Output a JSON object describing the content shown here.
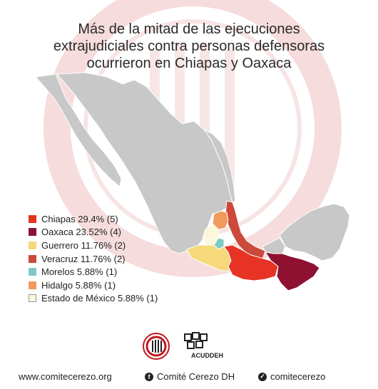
{
  "title": {
    "line1": "Más de la mitad de las ejecuciones",
    "line2": "extrajudiciales contra personas defensoras",
    "line3": "ocurrieron en Chiapas y Oaxaca"
  },
  "colors": {
    "chiapas": "#e63324",
    "oaxaca": "#8e1132",
    "guerrero": "#f5d97a",
    "veracruz": "#cc4a3c",
    "morelos": "#7fcbc7",
    "hidalgo": "#f09a5e",
    "estado_mexico": "#fdf8dc",
    "land": "#c8c8c8",
    "watermark": "#f3d6d6"
  },
  "legend": [
    {
      "label": "Chiapas 29.4% (5)",
      "color": "#e63324"
    },
    {
      "label": "Oaxaca 23.52% (4)",
      "color": "#8e1132"
    },
    {
      "label": "Guerrero 11.76% (2)",
      "color": "#f5d97a"
    },
    {
      "label": "Veracruz 11.76% (2)",
      "color": "#cc4a3c"
    },
    {
      "label": "Morelos 5.88% (1)",
      "color": "#7fcbc7"
    },
    {
      "label": "Hidalgo 5.88% (1)",
      "color": "#f09a5e"
    },
    {
      "label": "Estado de México 5.88% (1)",
      "color": "#fdf8dc"
    }
  ],
  "logos": {
    "acuddeh": "ACUDDEH"
  },
  "footer": {
    "website": "www.comitecerezo.org",
    "facebook": "Comité Cerezo DH",
    "twitter": "comitecerezo",
    "facebook_icon": "facebook-icon",
    "twitter_icon": "twitter-icon"
  }
}
